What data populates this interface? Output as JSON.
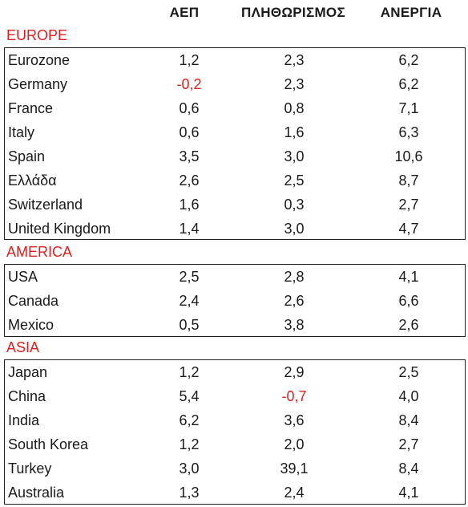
{
  "header": {
    "col1": "ΑΕΠ",
    "col2": "ΠΛΗΘΩΡΙΣΜΟΣ",
    "col3": "ΑΝΕΡΓΙΑ"
  },
  "colors": {
    "accent_red": "#e02020",
    "border": "#222222"
  },
  "regions": [
    {
      "title": "EUROPE",
      "rows": [
        {
          "name": "Eurozone",
          "v1": "1,2",
          "v2": "2,3",
          "v3": "6,2"
        },
        {
          "name": "Germany",
          "v1": "-0,2",
          "v2": "2,3",
          "v3": "6,2"
        },
        {
          "name": "France",
          "v1": "0,6",
          "v2": "0,8",
          "v3": "7,1"
        },
        {
          "name": "Italy",
          "v1": "0,6",
          "v2": "1,6",
          "v3": "6,3"
        },
        {
          "name": "Spain",
          "v1": "3,5",
          "v2": "3,0",
          "v3": "10,6"
        },
        {
          "name": "Ελλάδα",
          "v1": "2,6",
          "v2": "2,5",
          "v3": "8,7"
        },
        {
          "name": "Switzerland",
          "v1": "1,6",
          "v2": "0,3",
          "v3": "2,7"
        },
        {
          "name": "United Kingdom",
          "v1": "1,4",
          "v2": "3,0",
          "v3": "4,7"
        }
      ]
    },
    {
      "title": "AMERICA",
      "rows": [
        {
          "name": "USA",
          "v1": "2,5",
          "v2": "2,8",
          "v3": "4,1"
        },
        {
          "name": "Canada",
          "v1": "2,4",
          "v2": "2,6",
          "v3": "6,6"
        },
        {
          "name": "Mexico",
          "v1": "0,5",
          "v2": "3,8",
          "v3": "2,6"
        }
      ]
    },
    {
      "title": "ASIA",
      "rows": [
        {
          "name": "Japan",
          "v1": "1,2",
          "v2": "2,9",
          "v3": "2,5"
        },
        {
          "name": "China",
          "v1": "5,4",
          "v2": "-0,7",
          "v3": "4,0"
        },
        {
          "name": "India",
          "v1": "6,2",
          "v2": "3,6",
          "v3": "8,4"
        },
        {
          "name": "South Korea",
          "v1": "1,2",
          "v2": "2,0",
          "v3": "2,7"
        },
        {
          "name": "Turkey",
          "v1": "3,0",
          "v2": "39,1",
          "v3": "8,4"
        },
        {
          "name": "Australia",
          "v1": "1,3",
          "v2": "2,4",
          "v3": "4,1"
        }
      ]
    }
  ]
}
